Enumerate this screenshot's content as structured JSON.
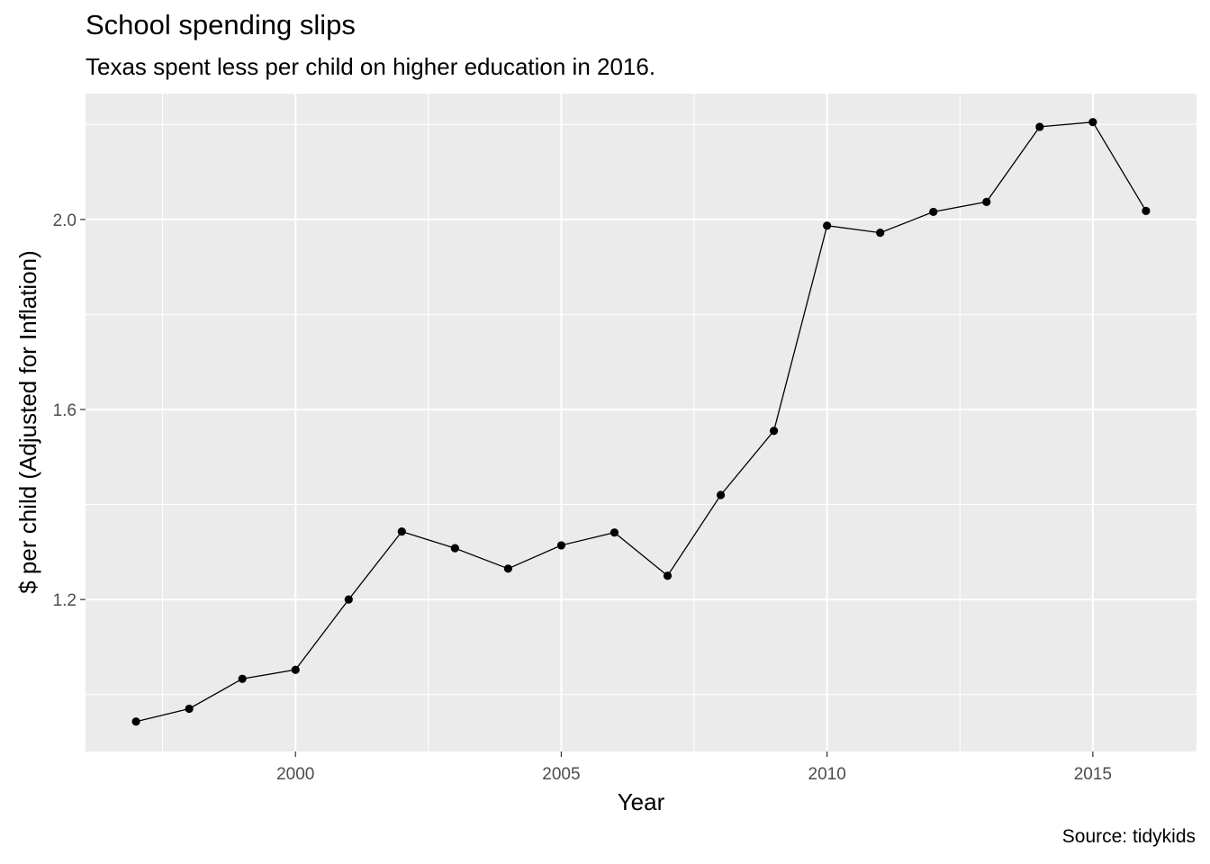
{
  "chart_data": {
    "type": "line",
    "title": "School spending slips",
    "subtitle": "Texas spent less per child on higher education in 2016.",
    "caption": "Source: tidykids",
    "xlabel": "Year",
    "ylabel": "$ per child (Adjusted for Inflation)",
    "x_ticks": [
      2000,
      2005,
      2010,
      2015
    ],
    "y_ticks": [
      1.2,
      1.6,
      2.0
    ],
    "y_tick_labels": [
      "1.2",
      "1.6",
      "2.0"
    ],
    "xlim": [
      1996.05,
      2016.95
    ],
    "ylim": [
      0.88,
      2.265
    ],
    "grid": true,
    "legend": "none",
    "colors": {
      "panel": "#EBEBEB",
      "grid": "#FFFFFF",
      "line": "#000000",
      "tick_text": "#4D4D4D"
    },
    "x": [
      1997,
      1998,
      1999,
      2000,
      2001,
      2002,
      2003,
      2004,
      2005,
      2006,
      2007,
      2008,
      2009,
      2010,
      2011,
      2012,
      2013,
      2014,
      2015,
      2016
    ],
    "y": [
      0.943,
      0.97,
      1.033,
      1.052,
      1.2,
      1.343,
      1.308,
      1.265,
      1.314,
      1.341,
      1.25,
      1.42,
      1.555,
      1.987,
      1.972,
      2.016,
      2.037,
      2.195,
      2.205,
      2.018
    ]
  }
}
